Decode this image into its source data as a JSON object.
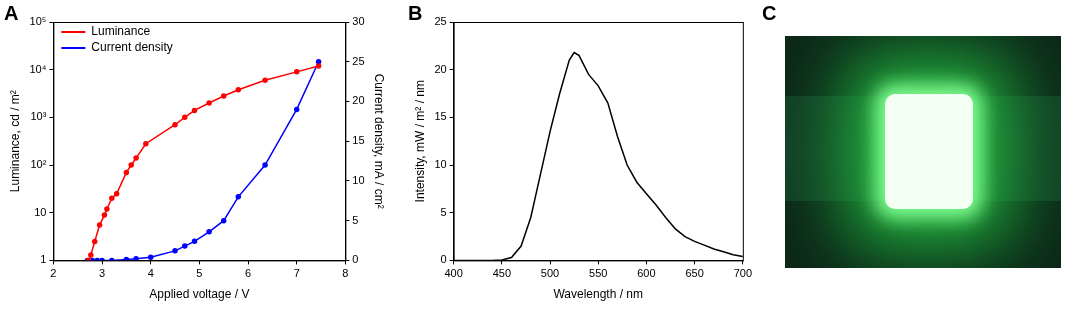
{
  "chart_data": [
    {
      "type": "line",
      "title": "A",
      "x_label": "Applied voltage / V",
      "y_label": "Luminance, cd / m²",
      "y2_label": "Current density, mA / cm²",
      "xlim": [
        2,
        8
      ],
      "xticks": [
        2,
        3,
        4,
        5,
        6,
        7,
        8
      ],
      "ylim": [
        1,
        100000
      ],
      "yticks": [
        1,
        10,
        {
          "value": 100,
          "label": "10²"
        },
        {
          "value": 1000,
          "label": "10³"
        },
        {
          "value": 10000,
          "label": "10⁴"
        },
        {
          "value": 100000,
          "label": "10⁵"
        }
      ],
      "log": "y",
      "y2lim": [
        0,
        30
      ],
      "y2ticks": [
        0,
        5,
        10,
        15,
        20,
        25,
        30
      ],
      "grid": false,
      "legend": "upper left",
      "series": [
        {
          "name": "Luminance",
          "color": "#ff0000",
          "marker": "circle",
          "line_style": "solid",
          "axis": "y",
          "x": [
            2.72,
            2.77,
            2.85,
            2.95,
            3.05,
            3.1,
            3.2,
            3.3,
            3.5,
            3.6,
            3.7,
            3.9,
            4.5,
            4.7,
            4.9,
            5.2,
            5.5,
            5.8,
            6.35,
            7.0,
            7.45
          ],
          "values": [
            1,
            1.3,
            2.5,
            5.5,
            9,
            12,
            20,
            25,
            70,
            100,
            140,
            280,
            700,
            1000,
            1400,
            2000,
            2800,
            3800,
            6000,
            9000,
            12000
          ]
        },
        {
          "name": "Current density",
          "color": "#0000ff",
          "marker": "circle",
          "line_style": "solid",
          "axis": "y2",
          "x": [
            2.7,
            2.8,
            2.9,
            3.0,
            3.2,
            3.5,
            3.7,
            4.0,
            4.5,
            4.7,
            4.9,
            5.2,
            5.5,
            5.8,
            6.35,
            7.0,
            7.45
          ],
          "values": [
            0,
            0,
            0,
            0,
            0,
            0.1,
            0.2,
            0.4,
            1.2,
            1.8,
            2.4,
            3.6,
            5,
            8,
            12,
            19,
            25
          ]
        }
      ]
    },
    {
      "type": "line",
      "title": "B",
      "x_label": "Wavelength / nm",
      "y_label": "Intensity, mW / m² / nm",
      "xlim": [
        400,
        700
      ],
      "xticks": [
        400,
        450,
        500,
        550,
        600,
        650,
        700
      ],
      "ylim": [
        0,
        25
      ],
      "yticks": [
        0,
        5,
        10,
        15,
        20,
        25
      ],
      "grid": false,
      "series": [
        {
          "color": "#000000",
          "marker": "none",
          "line_style": "solid",
          "x": [
            400,
            410,
            420,
            430,
            440,
            450,
            460,
            470,
            480,
            490,
            500,
            510,
            520,
            525,
            530,
            540,
            550,
            560,
            570,
            580,
            590,
            600,
            610,
            620,
            630,
            640,
            650,
            660,
            670,
            680,
            690,
            700
          ],
          "values": [
            0,
            0,
            0,
            0,
            0,
            0.05,
            0.3,
            1.5,
            4.5,
            9,
            13.5,
            17.5,
            21,
            21.8,
            21.5,
            19.5,
            18.3,
            16.5,
            13,
            10,
            8.2,
            7,
            5.8,
            4.5,
            3.3,
            2.5,
            2,
            1.6,
            1.2,
            0.9,
            0.6,
            0.4
          ]
        }
      ]
    }
  ],
  "photo": {
    "title": "C"
  }
}
